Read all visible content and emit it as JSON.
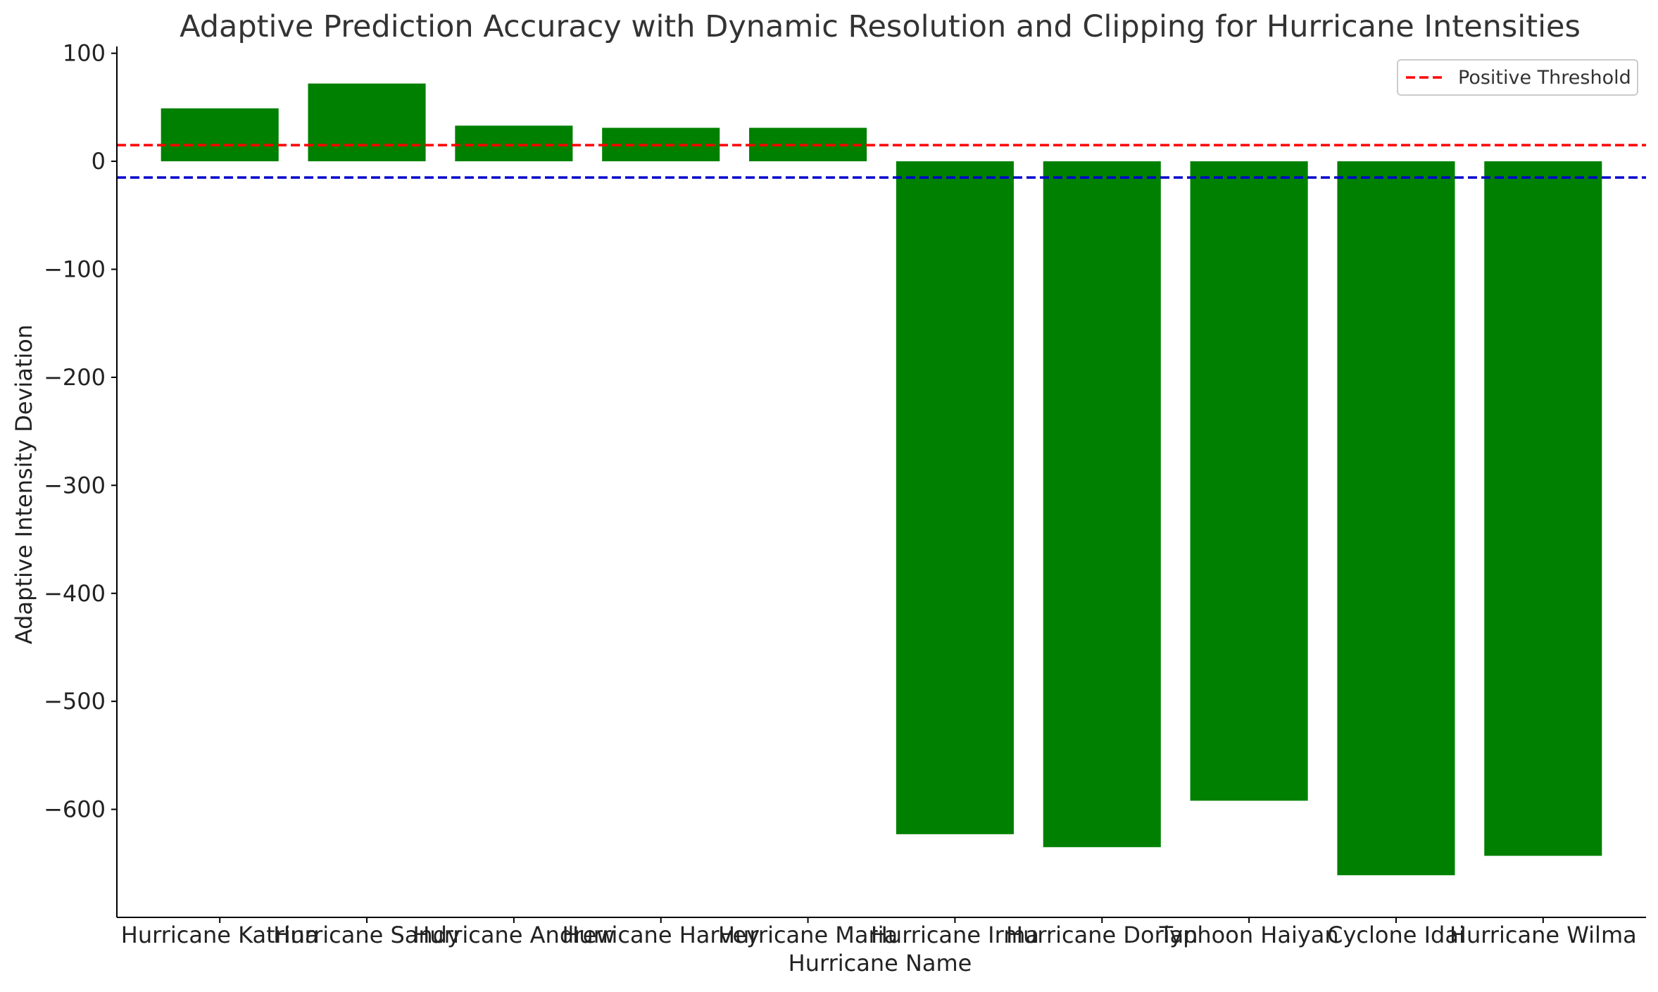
{
  "chart_data": {
    "type": "bar",
    "title": "Adaptive Prediction Accuracy with Dynamic Resolution and Clipping for Hurricane Intensities",
    "xlabel": "Hurricane Name",
    "ylabel": "Adaptive Intensity Deviation",
    "categories": [
      "Hurricane Katrina",
      "Hurricane Sandy",
      "Hurricane Andrew",
      "Hurricane Harvey",
      "Hurricane Maria",
      "Hurricane Irma",
      "Hurricane Dorian",
      "Typhoon Haiyan",
      "Cyclone Idai",
      "Hurricane Wilma"
    ],
    "values": [
      49,
      72,
      33,
      31,
      31,
      -623,
      -635,
      -592,
      -661,
      -643
    ],
    "bar_color": "#008000",
    "ylim": [
      -700,
      105
    ],
    "yticks": [
      100,
      0,
      -100,
      -200,
      -300,
      -400,
      -500,
      -600
    ],
    "ytick_labels": [
      "100",
      "0",
      "−100",
      "−200",
      "−300",
      "−400",
      "−500",
      "−600"
    ],
    "thresholds": [
      {
        "name": "Positive Threshold",
        "value": 15,
        "color": "#ff0000"
      },
      {
        "value": -15,
        "color": "#0000cc"
      }
    ],
    "legend": {
      "placement": "top-right",
      "entries": [
        "Positive Threshold"
      ]
    },
    "grid": false
  }
}
